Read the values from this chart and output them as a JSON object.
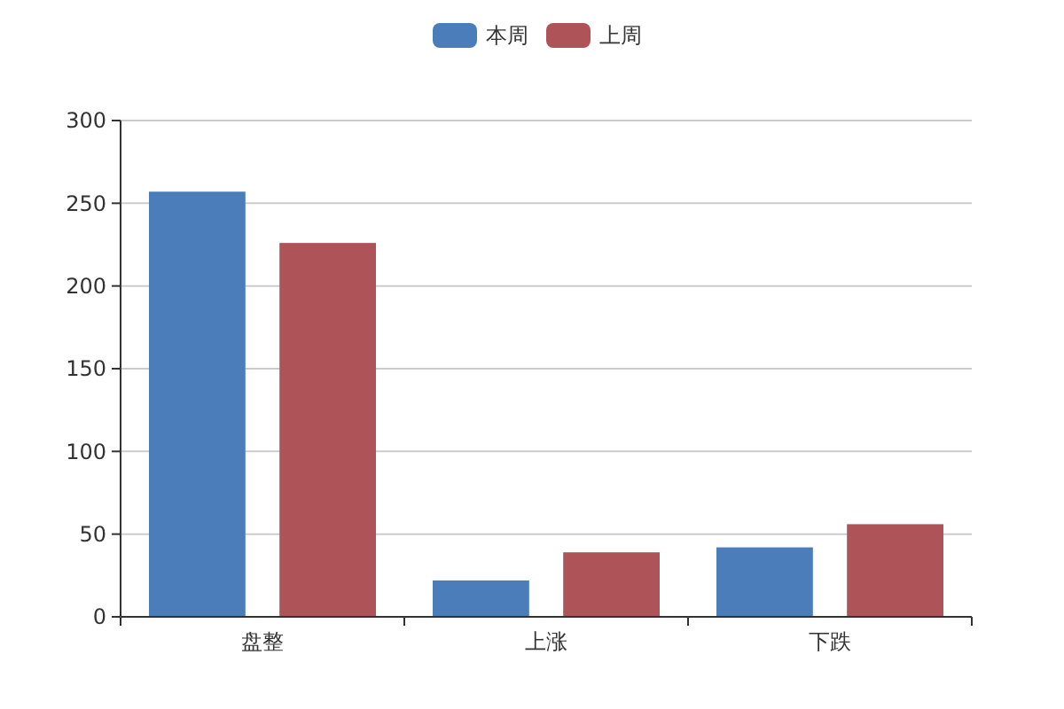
{
  "chart_data": {
    "type": "bar",
    "categories": [
      "盘整",
      "上涨",
      "下跌"
    ],
    "series": [
      {
        "name": "本周",
        "color": "#4b7dba",
        "values": [
          257,
          22,
          42
        ]
      },
      {
        "name": "上周",
        "color": "#ae5357",
        "values": [
          226,
          39,
          56
        ]
      }
    ],
    "ylim": [
      0,
      300
    ],
    "yticks": [
      0,
      50,
      100,
      150,
      200,
      250,
      300
    ],
    "grid": "y",
    "legend": "top"
  }
}
